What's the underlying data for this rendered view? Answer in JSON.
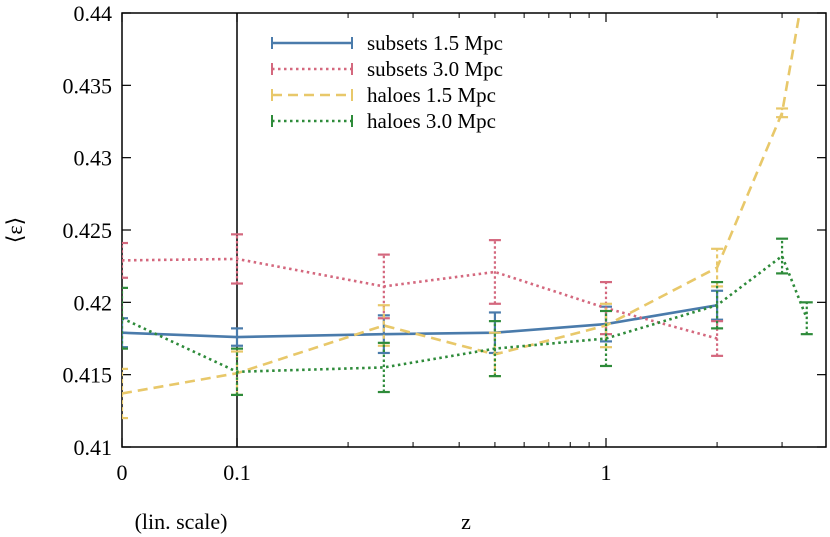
{
  "chart_data": {
    "type": "line",
    "title": "",
    "xlabel": "z",
    "ylabel": "⟨ε⟩",
    "x_axis_note": "(lin. scale)",
    "x_scale": "linear from 0 to 0.1, log above 0.1",
    "xlim": [
      0,
      3.5
    ],
    "ylim": [
      0.41,
      0.44
    ],
    "x_ticks": [
      {
        "value": 0,
        "label": "0"
      },
      {
        "value": 0.1,
        "label": "0.1"
      },
      {
        "value": 1,
        "label": "1"
      }
    ],
    "y_ticks": [
      {
        "value": 0.41,
        "label": "0.41"
      },
      {
        "value": 0.415,
        "label": "0.415"
      },
      {
        "value": 0.42,
        "label": "0.42"
      },
      {
        "value": 0.425,
        "label": "0.425"
      },
      {
        "value": 0.43,
        "label": "0.43"
      },
      {
        "value": 0.435,
        "label": "0.435"
      },
      {
        "value": 0.44,
        "label": "0.44"
      }
    ],
    "grid": false,
    "legend_position": "top-center",
    "series": [
      {
        "name": "subsets 1.5 Mpc",
        "color": "#4a7bab",
        "style": "solid",
        "points": [
          {
            "x": 0,
            "y": 0.4179,
            "err": 0.001
          },
          {
            "x": 0.1,
            "y": 0.4176,
            "err": 0.0006
          },
          {
            "x": 0.25,
            "y": 0.4178,
            "err": 0.0013
          },
          {
            "x": 0.5,
            "y": 0.4179,
            "err": 0.0014
          },
          {
            "x": 1.0,
            "y": 0.4185,
            "err": 0.0012
          },
          {
            "x": 2.0,
            "y": 0.4198,
            "err": 0.001
          }
        ]
      },
      {
        "name": "subsets 3.0 Mpc",
        "color": "#d4687e",
        "style": "dotted",
        "points": [
          {
            "x": 0,
            "y": 0.4229,
            "err": 0.0012
          },
          {
            "x": 0.1,
            "y": 0.423,
            "err": 0.0017
          },
          {
            "x": 0.25,
            "y": 0.4211,
            "err": 0.0022
          },
          {
            "x": 0.5,
            "y": 0.4221,
            "err": 0.0022
          },
          {
            "x": 1.0,
            "y": 0.4196,
            "err": 0.0018
          },
          {
            "x": 2.0,
            "y": 0.4175,
            "err": 0.0012
          }
        ]
      },
      {
        "name": "haloes 1.5 Mpc",
        "color": "#e8c86a",
        "style": "dashed",
        "points": [
          {
            "x": 0,
            "y": 0.4137,
            "err": 0.0017
          },
          {
            "x": 0.1,
            "y": 0.4151,
            "err": 0.0015
          },
          {
            "x": 0.25,
            "y": 0.4184,
            "err": 0.0014
          },
          {
            "x": 0.5,
            "y": 0.4164,
            "err": 0.0015
          },
          {
            "x": 1.0,
            "y": 0.4184,
            "err": 0.0015
          },
          {
            "x": 2.0,
            "y": 0.4224,
            "err": 0.0013
          },
          {
            "x": 3.0,
            "y": 0.4331,
            "err": 0.0003
          },
          {
            "x": 3.4,
            "y": 0.441,
            "err": 0
          }
        ]
      },
      {
        "name": "haloes 3.0 Mpc",
        "color": "#2e8b3a",
        "style": "dotted",
        "points": [
          {
            "x": 0,
            "y": 0.4189,
            "err": 0.0021
          },
          {
            "x": 0.1,
            "y": 0.4152,
            "err": 0.0016
          },
          {
            "x": 0.25,
            "y": 0.4155,
            "err": 0.0017
          },
          {
            "x": 0.5,
            "y": 0.4168,
            "err": 0.0019
          },
          {
            "x": 1.0,
            "y": 0.4175,
            "err": 0.0019
          },
          {
            "x": 2.0,
            "y": 0.4198,
            "err": 0.0016
          },
          {
            "x": 3.0,
            "y": 0.4232,
            "err": 0.0012
          },
          {
            "x": 3.5,
            "y": 0.4189,
            "err": 0.0011
          }
        ]
      }
    ]
  }
}
